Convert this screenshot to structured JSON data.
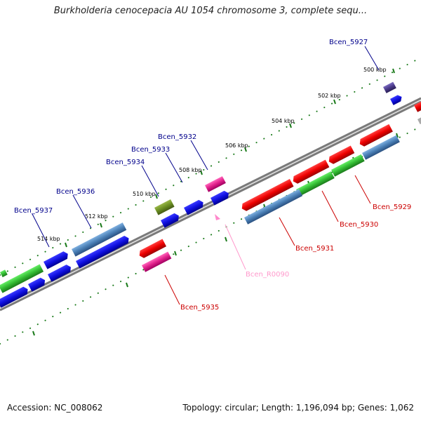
{
  "title": "Burkholderia cenocepacia AU 1054 chromosome 3, complete sequ...",
  "footer": {
    "accession": "Accession: NC_008062",
    "summary": "Topology: circular; Length: 1,196,094 bp; Genes: 1,062"
  },
  "scale": {
    "unit": "kbp",
    "ticks": [
      "500 kbp",
      "502 kbp",
      "504 kbp",
      "506 kbp",
      "508 kbp",
      "510 kbp",
      "512 kbp",
      "514 kbp"
    ]
  },
  "genes": [
    {
      "id": "Bcen_5927",
      "color": "#00008b"
    },
    {
      "id": "Bcen_5929",
      "color": "#cc0000"
    },
    {
      "id": "Bcen_5930",
      "color": "#cc0000"
    },
    {
      "id": "Bcen_5931",
      "color": "#cc0000"
    },
    {
      "id": "Bcen_5932",
      "color": "#00008b"
    },
    {
      "id": "Bcen_5933",
      "color": "#00008b"
    },
    {
      "id": "Bcen_5934",
      "color": "#00008b"
    },
    {
      "id": "Bcen_R0090",
      "color": "#ff99cc"
    },
    {
      "id": "Bcen_5935",
      "color": "#cc0000"
    },
    {
      "id": "Bcen_5936",
      "color": "#00008b"
    },
    {
      "id": "Bcen_5937",
      "color": "#00008b"
    }
  ],
  "colors": {
    "backbone": "#808080",
    "forward_cds": "#1010e0",
    "reverse_cds": "#e01010",
    "steelblue_cds": "#4a7fb5",
    "green_cds": "#33bb33",
    "pink_cds": "#e0208a",
    "olive_cds": "#6b8e23",
    "purple_cds": "#4b3a8a",
    "ticks": "#1a7a1a"
  }
}
